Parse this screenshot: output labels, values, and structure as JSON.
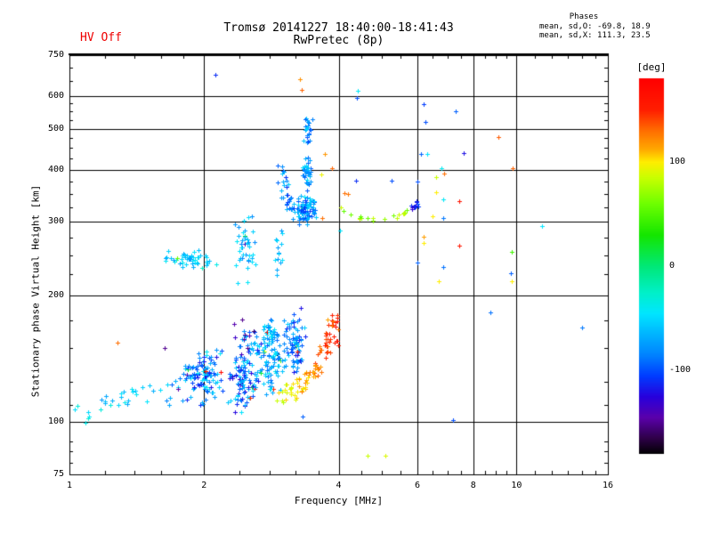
{
  "header": {
    "hv_status": "HV Off",
    "hv_color": "#ee0000",
    "title": "Tromsø 20141227 18:40:00-18:41:43",
    "subtitle": "RwPretec (8p)",
    "phases": {
      "heading": "Phases",
      "line_o": "mean, sd,O: -69.8, 18.9",
      "line_x": "mean, sd,X: 111.3, 23.5"
    }
  },
  "chart_data": {
    "type": "scatter",
    "title": "Tromsø 20141227 18:40:00-18:41:43",
    "subtitle": "RwPretec (8p)",
    "xlabel": "Frequency [MHz]",
    "ylabel": "Stationary phase Virtual Height [km]",
    "x_scale": "log",
    "y_scale": "log",
    "xlim": [
      1,
      16
    ],
    "ylim": [
      75,
      750
    ],
    "x_ticks": [
      1,
      2,
      4,
      6,
      8,
      10,
      16
    ],
    "x_minor_ticks": [
      1.2,
      1.4,
      1.6,
      1.8,
      2.4,
      2.8,
      3.2,
      3.6,
      4.5,
      5,
      5.5,
      6.5,
      7,
      7.5,
      8.5,
      9,
      9.5,
      11,
      12,
      13,
      14,
      15
    ],
    "y_ticks": [
      750,
      600,
      500,
      400,
      300,
      200,
      100,
      75
    ],
    "y_minor_ticks": [
      80,
      85,
      90,
      110,
      125,
      150,
      175,
      225,
      250,
      275,
      325,
      350,
      375,
      425,
      450,
      475,
      525,
      550,
      575,
      650,
      700
    ],
    "grid": true,
    "marker": "plus",
    "colorbar": {
      "label": "[deg]",
      "ticks": [
        100,
        0,
        -100
      ],
      "range": [
        -180,
        180
      ],
      "stops": [
        [
          180,
          "#ff0000"
        ],
        [
          150,
          "#ff1e00"
        ],
        [
          130,
          "#ff6e00"
        ],
        [
          112,
          "#ffaa00"
        ],
        [
          100,
          "#ffee00"
        ],
        [
          85,
          "#c8ff00"
        ],
        [
          60,
          "#6eff00"
        ],
        [
          30,
          "#14e600"
        ],
        [
          0,
          "#00e878"
        ],
        [
          -25,
          "#00f0c8"
        ],
        [
          -45,
          "#00e6ff"
        ],
        [
          -65,
          "#00b4ff"
        ],
        [
          -85,
          "#0082ff"
        ],
        [
          -105,
          "#003cff"
        ],
        [
          -125,
          "#2800dc"
        ],
        [
          -145,
          "#5a00aa"
        ],
        [
          -165,
          "#2d0046"
        ],
        [
          -180,
          "#000000"
        ]
      ]
    },
    "clusters": [
      {
        "name": "es-tail",
        "type": "path",
        "n": 26,
        "path": [
          [
            1.03,
            104
          ],
          [
            1.18,
            109
          ],
          [
            1.32,
            114
          ],
          [
            1.45,
            117
          ]
        ],
        "f_jitter": 0.02,
        "h_jitter": 5,
        "phase": [
          -75,
          -30
        ]
      },
      {
        "name": "es-sparse-left",
        "type": "box",
        "n": 13,
        "f": [
          1.45,
          1.9
        ],
        "h": [
          108,
          132
        ],
        "phase": [
          -95,
          -35
        ]
      },
      {
        "name": "es-left",
        "type": "box",
        "n": 110,
        "f": [
          1.75,
          2.3
        ],
        "h": [
          108,
          150
        ],
        "phase": [
          -120,
          -40
        ],
        "outliers": 0.05
      },
      {
        "name": "es-mid",
        "type": "box",
        "n": 95,
        "f": [
          2.25,
          2.66
        ],
        "h": [
          103,
          148
        ],
        "phase": [
          -130,
          -45
        ],
        "outliers": 0.04
      },
      {
        "name": "es-col-cyan",
        "type": "box",
        "n": 120,
        "f": [
          2.6,
          3.06
        ],
        "h": [
          110,
          178
        ],
        "phase": [
          -95,
          -35
        ],
        "outliers": 0.04
      },
      {
        "name": "es-up-left",
        "type": "box",
        "n": 25,
        "f": [
          2.38,
          2.72
        ],
        "h": [
          140,
          168
        ],
        "phase": [
          -115,
          -50
        ]
      },
      {
        "name": "es-col-blue",
        "type": "box",
        "n": 80,
        "f": [
          3.0,
          3.42
        ],
        "h": [
          125,
          188
        ],
        "phase": [
          -120,
          -55
        ],
        "outliers": 0.05
      },
      {
        "name": "purple-sprinkle",
        "type": "box",
        "n": 7,
        "f": [
          2.3,
          2.62
        ],
        "h": [
          138,
          186
        ],
        "phase": [
          -158,
          -132
        ]
      },
      {
        "name": "x-arc-orange",
        "type": "path",
        "n": 85,
        "path": [
          [
            2.95,
            116
          ],
          [
            3.15,
            119
          ],
          [
            3.35,
            124
          ],
          [
            3.55,
            133
          ],
          [
            3.72,
            147
          ],
          [
            3.85,
            163
          ],
          [
            3.92,
            178
          ]
        ],
        "f_jitter": 0.013,
        "h_jitter": 6,
        "phase": [
          85,
          165
        ],
        "phase_along": true
      },
      {
        "name": "x-arc-scatter",
        "type": "box",
        "n": 12,
        "f": [
          3.62,
          4.1
        ],
        "h": [
          140,
          188
        ],
        "phase": [
          110,
          165
        ]
      },
      {
        "name": "valley-band",
        "type": "box",
        "n": 48,
        "f": [
          1.56,
          2.2
        ],
        "h": [
          232,
          258
        ],
        "phase": [
          -75,
          -35
        ],
        "outliers": 0.04
      },
      {
        "name": "mid-column",
        "type": "box",
        "n": 42,
        "f": [
          2.3,
          2.62
        ],
        "h": [
          210,
          312
        ],
        "phase": [
          -85,
          -40
        ],
        "outliers": 0.05
      },
      {
        "name": "mid-thin",
        "type": "box",
        "n": 15,
        "f": [
          2.85,
          3.02
        ],
        "h": [
          200,
          300
        ],
        "phase": [
          -80,
          -45
        ]
      },
      {
        "name": "f-hook",
        "type": "path",
        "n": 50,
        "path": [
          [
            2.98,
            408
          ],
          [
            3.0,
            372
          ],
          [
            3.07,
            340
          ],
          [
            3.17,
            318
          ],
          [
            3.3,
            308
          ]
        ],
        "f_jitter": 0.012,
        "h_jitter": 10,
        "phase": [
          -112,
          -55
        ]
      },
      {
        "name": "f-col-low",
        "type": "box",
        "n": 75,
        "f": [
          3.22,
          3.58
        ],
        "h": [
          293,
          350
        ],
        "phase": [
          -110,
          -45
        ],
        "outliers": 0.04
      },
      {
        "name": "f-col-mid",
        "type": "box",
        "n": 38,
        "f": [
          3.3,
          3.52
        ],
        "h": [
          350,
          442
        ],
        "phase": [
          -100,
          -45
        ]
      },
      {
        "name": "f-col-high",
        "type": "box",
        "n": 22,
        "f": [
          3.33,
          3.5
        ],
        "h": [
          442,
          545
        ],
        "phase": [
          -105,
          -50
        ]
      },
      {
        "name": "x-arc-right",
        "type": "path",
        "n": 20,
        "path": [
          [
            4.08,
            322
          ],
          [
            4.35,
            310
          ],
          [
            4.7,
            303
          ],
          [
            5.1,
            304
          ],
          [
            5.45,
            310
          ],
          [
            5.75,
            318
          ]
        ],
        "f_jitter": 0.008,
        "h_jitter": 4,
        "phase": [
          55,
          105
        ]
      },
      {
        "name": "blue-clump",
        "type": "box",
        "n": 13,
        "f": [
          5.8,
          6.1
        ],
        "h": [
          318,
          340
        ],
        "phase": [
          -130,
          -95
        ]
      }
    ],
    "points": [
      [
        2.12,
        672,
        -110
      ],
      [
        3.28,
        658,
        120
      ],
      [
        3.3,
        620,
        133
      ],
      [
        4.42,
        618,
        -42
      ],
      [
        4.4,
        594,
        -100
      ],
      [
        6.2,
        572,
        -105
      ],
      [
        7.3,
        550,
        -95
      ],
      [
        6.25,
        519,
        -100
      ],
      [
        9.1,
        478,
        135
      ],
      [
        6.1,
        436,
        -95
      ],
      [
        6.32,
        436,
        -45
      ],
      [
        7.62,
        437,
        -120
      ],
      [
        9.8,
        404,
        133
      ],
      [
        6.8,
        404,
        -40
      ],
      [
        6.6,
        384,
        85
      ],
      [
        6.88,
        391,
        130
      ],
      [
        6.0,
        374,
        -100
      ],
      [
        4.37,
        376,
        -110
      ],
      [
        5.25,
        377,
        -100
      ],
      [
        4.12,
        352,
        130
      ],
      [
        4.2,
        350,
        128
      ],
      [
        6.6,
        354,
        100
      ],
      [
        6.85,
        340,
        -42
      ],
      [
        7.45,
        336,
        160
      ],
      [
        4.03,
        286,
        -45
      ],
      [
        6.5,
        310,
        100
      ],
      [
        6.85,
        306,
        -88
      ],
      [
        11.4,
        294,
        -45
      ],
      [
        6.2,
        276,
        115
      ],
      [
        6.2,
        268,
        100
      ],
      [
        7.45,
        264,
        158
      ],
      [
        9.75,
        254,
        45
      ],
      [
        6.0,
        240,
        -95
      ],
      [
        6.85,
        234,
        -90
      ],
      [
        9.7,
        226,
        -95
      ],
      [
        9.75,
        217,
        100
      ],
      [
        6.7,
        217,
        100
      ],
      [
        14.0,
        168,
        -88
      ],
      [
        7.2,
        101,
        -100
      ],
      [
        4.64,
        83,
        85
      ],
      [
        5.09,
        83,
        90
      ],
      [
        3.32,
        103,
        -95
      ],
      [
        3.32,
        120,
        95
      ],
      [
        3.68,
        306,
        130
      ],
      [
        3.72,
        436,
        118
      ],
      [
        3.86,
        404,
        132
      ],
      [
        3.65,
        390,
        95
      ],
      [
        1.28,
        155,
        130
      ],
      [
        1.63,
        150,
        -150
      ],
      [
        2.43,
        176,
        -150
      ],
      [
        2.46,
        158,
        -145
      ],
      [
        1.75,
        120,
        -145
      ],
      [
        8.74,
        183,
        -90
      ],
      [
        11.4,
        294,
        -45
      ]
    ]
  }
}
